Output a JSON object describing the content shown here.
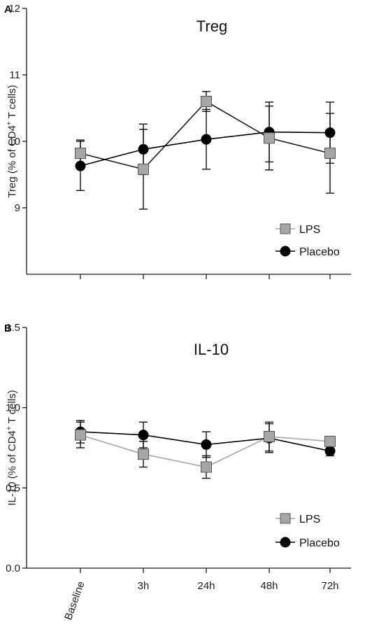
{
  "colors": {
    "lps": "#a6a6a6",
    "placebo": "#000000",
    "axis": "#1a1a1a"
  },
  "chart_data": [
    {
      "panel": "A",
      "type": "line",
      "title": "Treg",
      "ylabel": "Treg (% of CD4",
      "ylabel_sup": "+",
      "ylabel_end": " T cells)",
      "ylim": [
        8,
        12
      ],
      "yticks": [
        9,
        10,
        11,
        12
      ],
      "xlabel": "",
      "categories": [
        "Baseline",
        "3h",
        "24h",
        "48h",
        "72h"
      ],
      "series": [
        {
          "name": "LPS",
          "marker": "square",
          "values": [
            9.82,
            9.58,
            10.6,
            10.05,
            9.82
          ],
          "err": [
            0.2,
            0.6,
            0.15,
            0.48,
            0.6
          ]
        },
        {
          "name": "Placebo",
          "marker": "circle",
          "values": [
            9.63,
            9.88,
            10.03,
            10.14,
            10.13
          ],
          "err": [
            0.37,
            0.38,
            0.45,
            0.45,
            0.46
          ]
        }
      ]
    },
    {
      "panel": "B",
      "type": "line",
      "title": "IL-10",
      "ylabel": "IL-10 (% of CD4",
      "ylabel_sup": "+",
      "ylabel_end": " T cells)",
      "ylim": [
        0,
        1.5
      ],
      "yticks": [
        0.0,
        0.5,
        1.0,
        1.5
      ],
      "xlabel": "",
      "categories": [
        "Baseline",
        "3h",
        "24h",
        "48h",
        "72h"
      ],
      "series": [
        {
          "name": "LPS",
          "marker": "square",
          "values": [
            0.83,
            0.71,
            0.63,
            0.82,
            0.79
          ],
          "err": [
            0.08,
            0.08,
            0.07,
            0.09,
            0.03
          ]
        },
        {
          "name": "Placebo",
          "marker": "circle",
          "values": [
            0.85,
            0.83,
            0.77,
            0.81,
            0.73
          ],
          "err": [
            0.07,
            0.08,
            0.08,
            0.09,
            0.03
          ]
        }
      ]
    }
  ]
}
